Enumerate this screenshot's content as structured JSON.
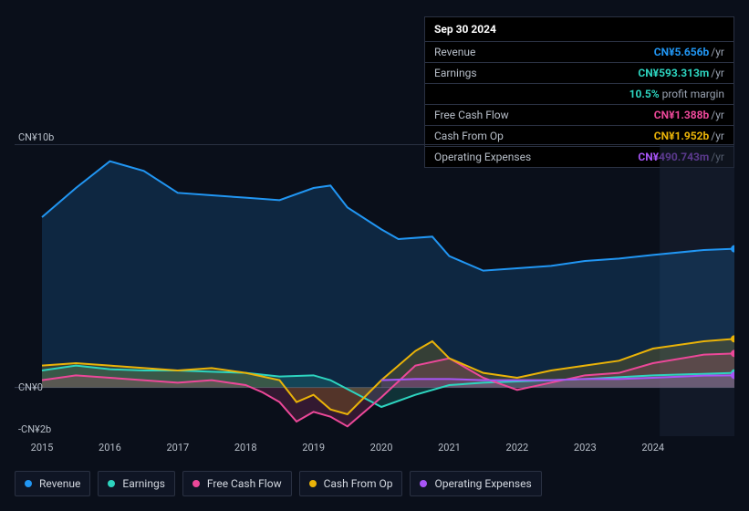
{
  "tooltip": {
    "date": "Sep 30 2024",
    "rows": [
      {
        "label": "Revenue",
        "value": "CN¥5.656b",
        "suffix": "/yr",
        "color": "#2196f3"
      },
      {
        "label": "Earnings",
        "value": "CN¥593.313m",
        "suffix": "/yr",
        "color": "#2dd4bf",
        "sub_pct": "10.5%",
        "sub_text": "profit margin"
      },
      {
        "label": "Free Cash Flow",
        "value": "CN¥1.388b",
        "suffix": "/yr",
        "color": "#ec4899"
      },
      {
        "label": "Cash From Op",
        "value": "CN¥1.952b",
        "suffix": "/yr",
        "color": "#eab308"
      },
      {
        "label": "Operating Expenses",
        "value": "CN¥490.743m",
        "suffix": "/yr",
        "color": "#a855f7"
      }
    ]
  },
  "chart": {
    "type": "area",
    "background_color": "#0a0f1a",
    "grid_color": "#2a3142",
    "text_color": "#b8bfc9",
    "ylim": [
      -2,
      10
    ],
    "ytick_labels": {
      "top": "CN¥10b",
      "zero": "CN¥0",
      "bottom": "-CN¥2b"
    },
    "xlim": [
      2015,
      2025.2
    ],
    "xticks": [
      2015,
      2016,
      2017,
      2018,
      2019,
      2020,
      2021,
      2022,
      2023,
      2024
    ],
    "forecast_start": 2024.1,
    "series": [
      {
        "name": "Revenue",
        "color": "#2196f3",
        "x": [
          2015,
          2015.5,
          2016,
          2016.5,
          2017,
          2017.5,
          2018,
          2018.5,
          2019,
          2019.25,
          2019.5,
          2020,
          2020.25,
          2020.75,
          2021,
          2021.5,
          2022,
          2022.5,
          2023,
          2023.5,
          2024,
          2024.75,
          2025.2
        ],
        "y": [
          7.0,
          8.2,
          9.3,
          8.9,
          8.0,
          7.9,
          7.8,
          7.7,
          8.2,
          8.3,
          7.4,
          6.5,
          6.1,
          6.2,
          5.4,
          4.8,
          4.9,
          5.0,
          5.2,
          5.3,
          5.45,
          5.65,
          5.7
        ]
      },
      {
        "name": "Earnings",
        "color": "#2dd4bf",
        "x": [
          2015,
          2015.5,
          2016,
          2016.5,
          2017,
          2017.5,
          2018,
          2018.5,
          2019,
          2019.25,
          2020,
          2020.5,
          2021,
          2021.5,
          2022,
          2022.5,
          2023,
          2024,
          2025.2
        ],
        "y": [
          0.7,
          0.9,
          0.75,
          0.7,
          0.7,
          0.65,
          0.6,
          0.45,
          0.5,
          0.3,
          -0.8,
          -0.3,
          0.1,
          0.2,
          0.25,
          0.3,
          0.35,
          0.5,
          0.6
        ]
      },
      {
        "name": "Free Cash Flow",
        "color": "#ec4899",
        "x": [
          2015,
          2015.5,
          2016,
          2017,
          2017.5,
          2018,
          2018.25,
          2018.5,
          2018.75,
          2019,
          2019.25,
          2019.5,
          2020,
          2020.5,
          2021,
          2021.5,
          2022,
          2022.5,
          2023,
          2023.5,
          2024,
          2024.75,
          2025.2
        ],
        "y": [
          0.3,
          0.5,
          0.4,
          0.2,
          0.3,
          0.1,
          -0.2,
          -0.6,
          -1.4,
          -1.0,
          -1.2,
          -1.6,
          -0.4,
          0.9,
          1.2,
          0.4,
          -0.1,
          0.2,
          0.5,
          0.6,
          1.0,
          1.35,
          1.4
        ]
      },
      {
        "name": "Cash From Op",
        "color": "#eab308",
        "x": [
          2015,
          2015.5,
          2016,
          2017,
          2017.5,
          2018,
          2018.5,
          2018.75,
          2019,
          2019.25,
          2019.5,
          2020,
          2020.5,
          2020.75,
          2021,
          2021.5,
          2022,
          2022.5,
          2023,
          2023.5,
          2024,
          2024.75,
          2025.2
        ],
        "y": [
          0.9,
          1.0,
          0.9,
          0.7,
          0.8,
          0.6,
          0.3,
          -0.6,
          -0.3,
          -0.9,
          -1.1,
          0.3,
          1.5,
          1.9,
          1.2,
          0.6,
          0.4,
          0.7,
          0.9,
          1.1,
          1.6,
          1.9,
          2.0
        ]
      },
      {
        "name": "Operating Expenses",
        "color": "#a855f7",
        "x": [
          2020,
          2020.5,
          2021,
          2021.5,
          2022,
          2022.5,
          2023,
          2023.5,
          2024,
          2024.75,
          2025.2
        ],
        "y": [
          0.3,
          0.35,
          0.35,
          0.3,
          0.3,
          0.3,
          0.35,
          0.35,
          0.4,
          0.49,
          0.5
        ]
      }
    ],
    "legend": [
      {
        "label": "Revenue",
        "color": "#2196f3"
      },
      {
        "label": "Earnings",
        "color": "#2dd4bf"
      },
      {
        "label": "Free Cash Flow",
        "color": "#ec4899"
      },
      {
        "label": "Cash From Op",
        "color": "#eab308"
      },
      {
        "label": "Operating Expenses",
        "color": "#a855f7"
      }
    ]
  }
}
